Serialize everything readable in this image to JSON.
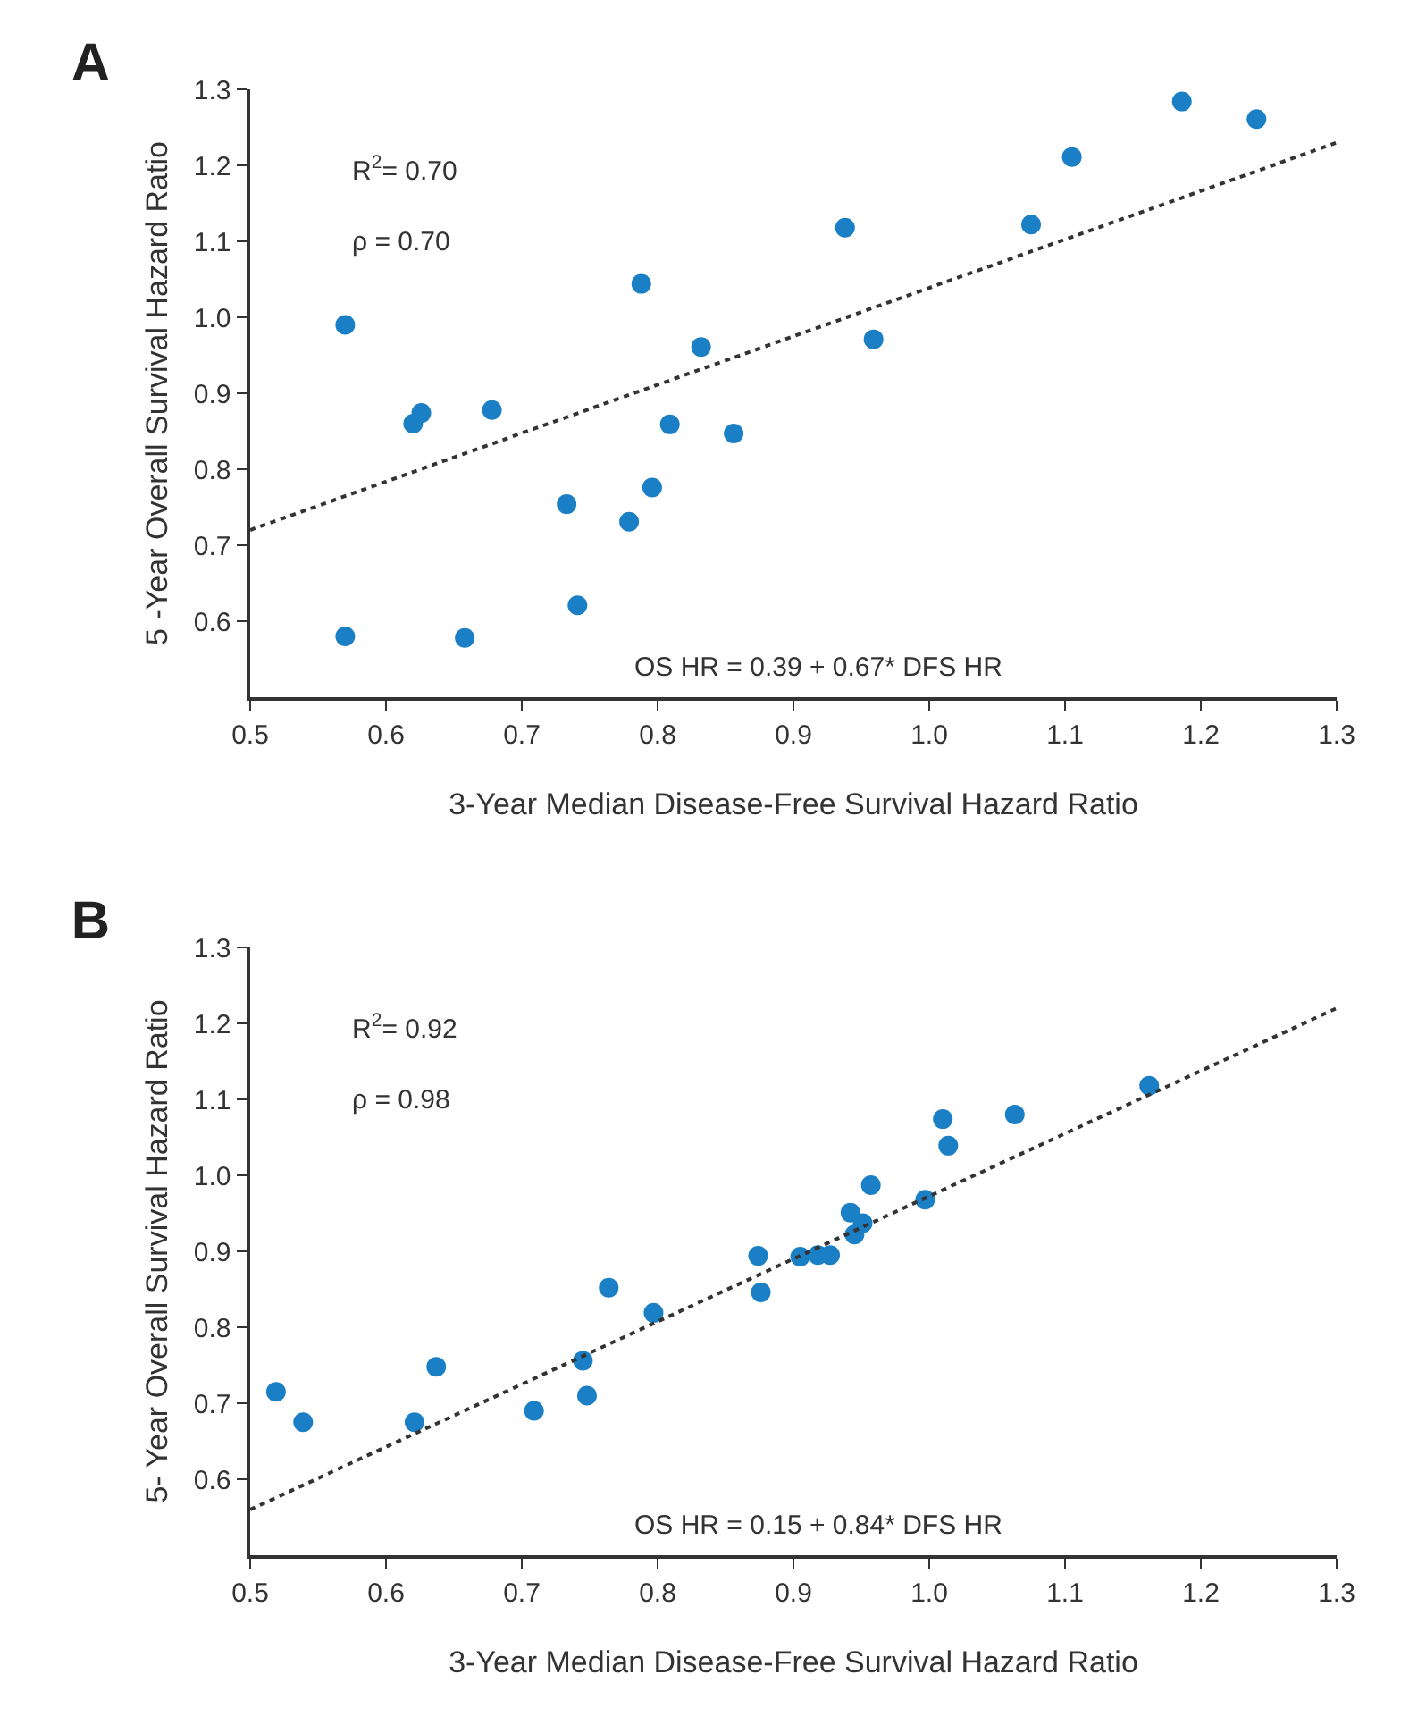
{
  "chart_data": [
    {
      "type": "scatter",
      "title": "A",
      "xlabel": "3-Year Median Disease-Free Survival Hazard Ratio",
      "ylabel": "5 -Year Overall Survival Hazard Ratio",
      "xlim": [
        0.5,
        1.3
      ],
      "ylim": [
        0.5,
        1.3
      ],
      "xticks": [
        0.5,
        0.6,
        0.7,
        0.8,
        0.9,
        "1.0",
        1.1,
        1.2,
        1.3
      ],
      "yticks": [
        0.6,
        0.7,
        0.8,
        0.9,
        {
          "value": 1.0,
          "label": "1.0"
        },
        1.1,
        1.2,
        1.3
      ],
      "grid": false,
      "annotations": [
        "R$^{2}$= 0.70",
        "ρ = 0.70",
        "OS HR = 0.39 + 0.67* DFS HR"
      ],
      "series": [
        {
          "color": "#1a7fc4",
          "marker": "circle",
          "x": [
            0.57,
            0.57,
            0.62,
            0.626,
            0.658,
            0.678,
            0.733,
            0.741,
            0.779,
            0.788,
            0.796,
            0.809,
            0.832,
            0.856,
            0.938,
            0.959,
            1.075,
            1.105,
            1.186,
            1.241
          ],
          "values": [
            0.99,
            0.58,
            0.86,
            0.874,
            0.578,
            0.878,
            0.754,
            0.621,
            0.731,
            1.044,
            0.776,
            0.859,
            0.961,
            0.847,
            1.118,
            0.971,
            1.122,
            1.211,
            1.284,
            1.261
          ]
        },
        {
          "type": "line",
          "color": "#333333",
          "line_style": "dotted",
          "marker": "none",
          "x": [
            0.5,
            1.3
          ],
          "values": [
            0.72,
            1.23
          ]
        }
      ]
    },
    {
      "type": "scatter",
      "title": "B",
      "xlabel": "3-Year Median Disease-Free Survival Hazard Ratio",
      "ylabel": "5- Year Overall Survival Hazard Ratio",
      "xlim": [
        0.5,
        1.3
      ],
      "ylim": [
        0.5,
        1.3
      ],
      "xticks": [
        0.5,
        0.6,
        0.7,
        0.8,
        0.9,
        "1.0",
        1.1,
        1.2,
        1.3
      ],
      "yticks": [
        0.6,
        0.7,
        0.8,
        0.9,
        {
          "value": 1.0,
          "label": "1.0"
        },
        1.1,
        1.2,
        1.3
      ],
      "grid": false,
      "annotations": [
        "R$^{2}$= 0.92",
        "ρ = 0.98",
        "OS HR = 0.15 + 0.84* DFS HR"
      ],
      "series": [
        {
          "color": "#1a7fc4",
          "marker": "circle",
          "x": [
            0.519,
            0.539,
            0.621,
            0.637,
            0.709,
            0.745,
            0.748,
            0.764,
            0.797,
            0.874,
            0.876,
            0.905,
            0.918,
            0.927,
            0.942,
            0.945,
            0.951,
            0.957,
            0.997,
            1.01,
            1.014,
            1.063,
            1.162
          ],
          "values": [
            0.715,
            0.675,
            0.675,
            0.748,
            0.69,
            0.756,
            0.71,
            0.852,
            0.819,
            0.894,
            0.846,
            0.893,
            0.895,
            0.895,
            0.951,
            0.922,
            0.937,
            0.987,
            0.968,
            1.074,
            1.039,
            1.08,
            1.118
          ]
        },
        {
          "type": "line",
          "color": "#333333",
          "line_style": "dotted",
          "marker": "none",
          "x": [
            0.5,
            1.3
          ],
          "values": [
            0.56,
            1.22
          ]
        }
      ]
    }
  ]
}
